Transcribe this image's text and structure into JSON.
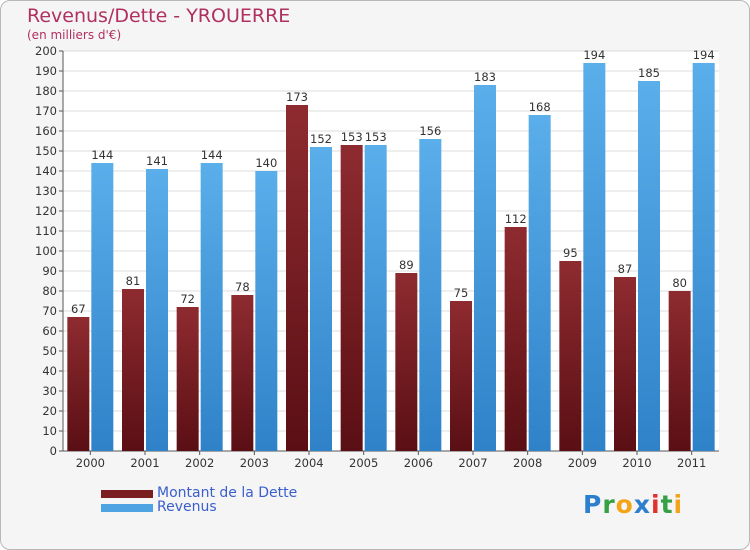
{
  "title": "Revenus/Dette - YROUERRE",
  "subtitle": "(en milliers d'€)",
  "brand": {
    "letters": [
      {
        "ch": "P",
        "color": "#2c7fcf"
      },
      {
        "ch": "r",
        "color": "#37a045"
      },
      {
        "ch": "o",
        "color": "#f3a51a"
      },
      {
        "ch": "x",
        "color": "#2c7fcf"
      },
      {
        "ch": "i",
        "color": "#e0312f"
      },
      {
        "ch": "t",
        "color": "#37a045"
      },
      {
        "ch": "i",
        "color": "#f3a51a"
      }
    ]
  },
  "colors": {
    "dette": "#7b1e22",
    "revenus": "#4ea3e2",
    "grid": "#dcdcdc"
  },
  "chart_data": {
    "type": "bar",
    "title": "Revenus/Dette - YROUERRE",
    "subtitle": "(en milliers d'€)",
    "categories": [
      "2000",
      "2001",
      "2002",
      "2003",
      "2004",
      "2005",
      "2006",
      "2007",
      "2008",
      "2009",
      "2010",
      "2011"
    ],
    "series": [
      {
        "name": "Montant de la Dette",
        "values": [
          67,
          81,
          72,
          78,
          173,
          153,
          89,
          75,
          112,
          95,
          87,
          80
        ]
      },
      {
        "name": "Revenus",
        "values": [
          144,
          141,
          144,
          140,
          152,
          153,
          156,
          183,
          168,
          194,
          185,
          194
        ]
      }
    ],
    "ylim": [
      0,
      200
    ],
    "ytick_step": 10,
    "grid": true,
    "legend": "bottom-left"
  }
}
